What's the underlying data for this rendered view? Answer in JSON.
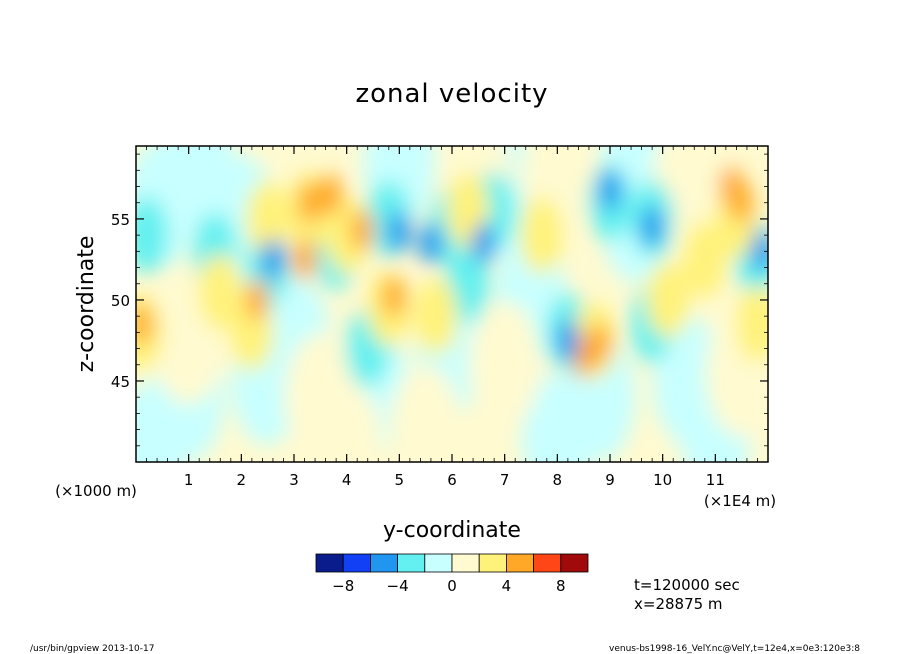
{
  "chart_data": {
    "type": "heatmap",
    "title": "zonal velocity",
    "xlabel": "y-coordinate",
    "ylabel": "z-coordinate",
    "x_unit_left": "(×1000 m)",
    "x_unit_right": "(×1E4 m)",
    "x_ticks": [
      "1",
      "2",
      "3",
      "4",
      "5",
      "6",
      "7",
      "8",
      "9",
      "10",
      "11"
    ],
    "y_ticks": [
      "45",
      "50",
      "55"
    ],
    "xlim": [
      0,
      12
    ],
    "ylim": [
      40,
      59.5
    ],
    "colorbar": {
      "levels": [
        -10,
        -8,
        -6,
        -4,
        -2,
        0,
        2,
        4,
        6,
        8,
        10
      ],
      "colors": [
        "#0a1c8c",
        "#1240f5",
        "#2196f0",
        "#64f0f0",
        "#c8ffff",
        "#fffad0",
        "#fff27a",
        "#ffa828",
        "#ff4616",
        "#a00a0a"
      ],
      "tick_labels": [
        "−8",
        "−4",
        "0",
        "4",
        "8"
      ]
    },
    "cells": [
      {
        "y": 3.3,
        "z": 56.0,
        "v": 5
      },
      {
        "y": 3.7,
        "z": 56.5,
        "v": 5
      },
      {
        "y": 11.5,
        "z": 56.0,
        "v": 5
      },
      {
        "y": 11.3,
        "z": 57.0,
        "v": 5
      },
      {
        "y": 0.1,
        "z": 48.5,
        "v": 5
      },
      {
        "y": 8.8,
        "z": 47.3,
        "v": 5
      },
      {
        "y": 2.3,
        "z": 50.0,
        "v": 5
      },
      {
        "y": 4.9,
        "z": 50.2,
        "v": 5
      },
      {
        "y": 4.3,
        "z": 54.3,
        "v": 5
      },
      {
        "y": 8.5,
        "z": 46.5,
        "v": 5
      },
      {
        "y": 3.2,
        "z": 52.5,
        "v": 5
      },
      {
        "y": 9.0,
        "z": 56.8,
        "v": -5
      },
      {
        "y": 9.8,
        "z": 54.5,
        "v": -5
      },
      {
        "y": 11.9,
        "z": 53.0,
        "v": -5
      },
      {
        "y": 8.2,
        "z": 47.5,
        "v": -5
      },
      {
        "y": 5.0,
        "z": 54.2,
        "v": -5
      },
      {
        "y": 6.6,
        "z": 53.5,
        "v": -5
      },
      {
        "y": 5.6,
        "z": 53.5,
        "v": -5
      },
      {
        "y": 2.6,
        "z": 52.5,
        "v": -5
      },
      {
        "y": 1.5,
        "z": 53.0,
        "v": -3
      },
      {
        "y": 2.5,
        "z": 52.0,
        "v": -3
      },
      {
        "y": 3.8,
        "z": 53.0,
        "v": -3
      },
      {
        "y": 4.8,
        "z": 55.0,
        "v": -3
      },
      {
        "y": 6.0,
        "z": 54.5,
        "v": -3
      },
      {
        "y": 6.8,
        "z": 55.5,
        "v": -3
      },
      {
        "y": 8.2,
        "z": 48.0,
        "v": -3
      },
      {
        "y": 9.0,
        "z": 56.0,
        "v": -3
      },
      {
        "y": 9.8,
        "z": 55.0,
        "v": -3
      },
      {
        "y": 11.8,
        "z": 52.5,
        "v": -3
      },
      {
        "y": 0.2,
        "z": 54.0,
        "v": -3
      },
      {
        "y": 4.4,
        "z": 47.0,
        "v": -3
      },
      {
        "y": 9.8,
        "z": 48.5,
        "v": -3
      },
      {
        "y": 6.3,
        "z": 51.0,
        "v": -3
      },
      {
        "y": 1.6,
        "z": 50.5,
        "v": 3
      },
      {
        "y": 2.5,
        "z": 55.0,
        "v": 3
      },
      {
        "y": 3.3,
        "z": 55.5,
        "v": 3
      },
      {
        "y": 4.0,
        "z": 54.0,
        "v": 3
      },
      {
        "y": 4.8,
        "z": 49.5,
        "v": 3
      },
      {
        "y": 5.7,
        "z": 49.0,
        "v": 3
      },
      {
        "y": 7.7,
        "z": 54.0,
        "v": 3
      },
      {
        "y": 8.7,
        "z": 47.5,
        "v": 3
      },
      {
        "y": 10.8,
        "z": 52.5,
        "v": 3
      },
      {
        "y": 11.4,
        "z": 55.0,
        "v": 3
      },
      {
        "y": 0.1,
        "z": 48.0,
        "v": 3
      },
      {
        "y": 2.2,
        "z": 48.0,
        "v": 3
      },
      {
        "y": 6.3,
        "z": 55.5,
        "v": 3
      },
      {
        "y": 10.1,
        "z": 50.0,
        "v": 3
      },
      {
        "y": 11.8,
        "z": 48.5,
        "v": 3
      },
      {
        "y": 0.5,
        "z": 56.0,
        "v": -1
      },
      {
        "y": 2.0,
        "z": 55.0,
        "v": -1
      },
      {
        "y": 7.0,
        "z": 56.5,
        "v": -1
      },
      {
        "y": 9.5,
        "z": 55.0,
        "v": -1
      },
      {
        "y": 3.0,
        "z": 47.5,
        "v": -1
      },
      {
        "y": 6.0,
        "z": 47.0,
        "v": -1
      },
      {
        "y": 8.8,
        "z": 44.0,
        "v": -1
      },
      {
        "y": 10.5,
        "z": 45.0,
        "v": -1
      },
      {
        "y": 1.0,
        "z": 44.0,
        "v": -1
      },
      {
        "y": 11.0,
        "z": 42.0,
        "v": -1
      },
      {
        "y": 4.5,
        "z": 44.5,
        "v": -1
      },
      {
        "y": 7.5,
        "z": 50.0,
        "v": -1
      },
      {
        "y": 9.5,
        "z": 58.5,
        "v": -1
      },
      {
        "y": 5.0,
        "z": 58.5,
        "v": -1
      },
      {
        "y": 1.2,
        "z": 58.0,
        "v": -1
      },
      {
        "y": 0.3,
        "z": 41.0,
        "v": -1
      },
      {
        "y": 8.0,
        "z": 41.5,
        "v": -1
      },
      {
        "y": 2.5,
        "z": 45.0,
        "v": -1
      },
      {
        "y": 3.5,
        "z": 44.0,
        "v": 1
      },
      {
        "y": 5.5,
        "z": 42.0,
        "v": 1
      },
      {
        "y": 7.0,
        "z": 46.0,
        "v": 1
      },
      {
        "y": 1.0,
        "z": 47.5,
        "v": 1
      },
      {
        "y": 6.5,
        "z": 57.0,
        "v": 1
      },
      {
        "y": 10.5,
        "z": 57.5,
        "v": 1
      },
      {
        "y": 8.0,
        "z": 57.5,
        "v": 1
      },
      {
        "y": 11.5,
        "z": 45.5,
        "v": 1
      },
      {
        "y": 4.0,
        "z": 41.0,
        "v": 1
      }
    ],
    "annotations": [
      "t=120000 sec",
      "x=28875 m"
    ]
  },
  "footer": {
    "left": "/usr/bin/gpview   2013-10-17",
    "right": "venus-bs1998-16_VelY.nc@VelY,t=12e4,x=0e3:120e3:8"
  }
}
